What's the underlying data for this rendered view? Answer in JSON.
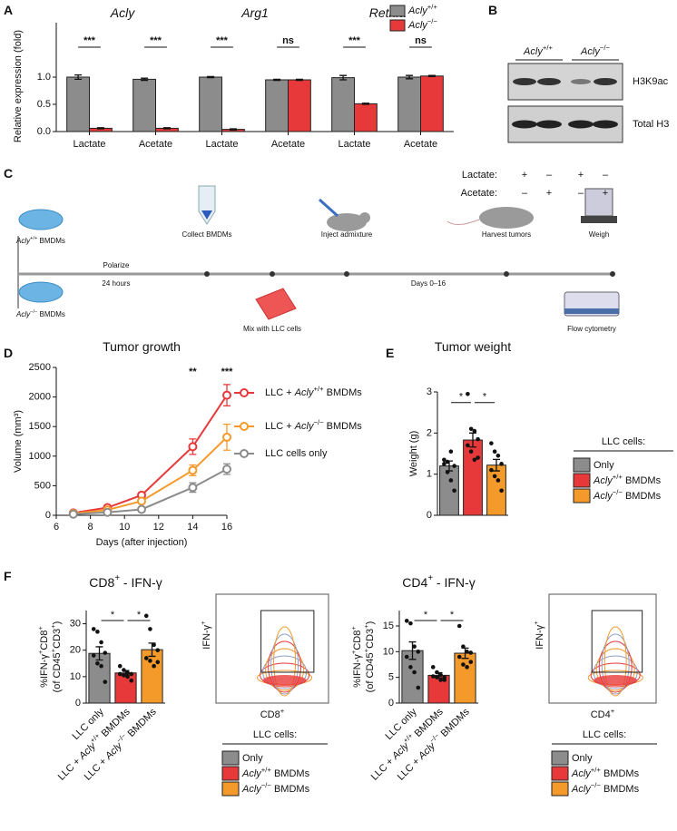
{
  "panel_labels": [
    "A",
    "B",
    "C",
    "D",
    "E",
    "F"
  ],
  "chart_data": [
    {
      "type": "bar",
      "groups": [
        "Acly",
        "Arg1",
        "Retnla"
      ],
      "categories": [
        "Lactate",
        "Acetate",
        "Lactate",
        "Acetate",
        "Lactate",
        "Acetate"
      ],
      "ylabel": "Relative expression (fold)",
      "series": [
        {
          "name": "Acly+/+",
          "color": "#8c8c8c",
          "values": [
            1.0,
            0.96,
            1.0,
            0.95,
            0.99,
            1.0
          ],
          "errors": [
            0.04,
            0.02,
            0.01,
            0.01,
            0.04,
            0.03
          ]
        },
        {
          "name": "Acly−/−",
          "color": "#e8393a",
          "values": [
            0.06,
            0.06,
            0.04,
            0.95,
            0.51,
            1.02
          ],
          "errors": [
            0.01,
            0.01,
            0.01,
            0.01,
            0.01,
            0.01
          ]
        }
      ],
      "significance": [
        "***",
        "***",
        "***",
        "ns",
        "***",
        "ns"
      ],
      "ylim": [
        0,
        2.0
      ],
      "yticks": [
        {
          "value": 0,
          "label": "0.0"
        },
        0.5,
        {
          "value": 1,
          "label": "1.0"
        }
      ]
    },
    {
      "type": "line",
      "title": "Tumor growth",
      "xlabel": "Days (after injection)",
      "ylabel": "Volume (mm³)",
      "x": [
        7,
        9,
        11,
        14,
        16
      ],
      "series": [
        {
          "name": "LLC + Acly+/+ BMDMs",
          "color": "#e8393a",
          "values": [
            40,
            130,
            340,
            1160,
            2030
          ],
          "errors": [
            10,
            20,
            30,
            130,
            180
          ]
        },
        {
          "name": "LLC + Acly−/− BMDMs",
          "color": "#f39a2b",
          "values": [
            30,
            90,
            240,
            760,
            1320
          ],
          "errors": [
            10,
            15,
            30,
            90,
            220
          ]
        },
        {
          "name": "LLC cells only",
          "color": "#8c8c8c",
          "values": [
            20,
            50,
            100,
            470,
            780
          ],
          "errors": [
            5,
            10,
            20,
            80,
            90
          ]
        }
      ],
      "significance": [
        "**",
        "***"
      ],
      "xlim": [
        6,
        16
      ],
      "xticks": [
        6,
        8,
        10,
        12,
        14,
        16
      ],
      "ylim": [
        0,
        2500
      ],
      "yticks": [
        0,
        500,
        1000,
        1500,
        2000,
        2500
      ]
    },
    {
      "type": "bar",
      "title": "Tumor weight",
      "ylabel": "Weight (g)",
      "categories": [
        null,
        null,
        null
      ],
      "legend_title": "LLC cells:",
      "legend": [
        "Only",
        "Acly+/+ BMDMs",
        "Acly−/− BMDMs"
      ],
      "colors": [
        "#8c8c8c",
        "#e8393a",
        "#f39a2b"
      ],
      "values": [
        1.2,
        1.83,
        1.22
      ],
      "errors": [
        0.12,
        0.17,
        0.14
      ],
      "points": [
        [
          1.25,
          1.3,
          0.85,
          1.2,
          1.35,
          1.05,
          1.55,
          0.6
        ],
        [
          2.95,
          2.1,
          2.05,
          1.85,
          1.7,
          1.55,
          1.35,
          1.4
        ],
        [
          1.75,
          1.55,
          1.45,
          1.25,
          1.1,
          0.95,
          0.85,
          0.6
        ]
      ],
      "significance": [
        "*",
        "*"
      ],
      "ylim": [
        0,
        3
      ],
      "yticks": [
        0,
        1,
        2,
        3
      ]
    },
    {
      "type": "bar",
      "title": "CD8+ - IFN-γ",
      "ylabel": [
        "%IFN-γ+CD8+",
        "(of CD45+CD3+)"
      ],
      "categories": [
        "LLC only",
        "LLC + Acly+/+ BMDMs",
        "LLC + Acly−/− BMDMs"
      ],
      "colors": [
        "#8c8c8c",
        "#e8393a",
        "#f39a2b"
      ],
      "values": [
        18.8,
        11.4,
        20.2
      ],
      "errors": [
        2.5,
        0.9,
        2.5
      ],
      "points": [
        [
          28,
          27,
          23,
          19,
          18,
          15,
          14,
          8
        ],
        [
          14,
          12.5,
          11.5,
          11,
          11,
          10.5,
          10,
          8.5
        ],
        [
          33,
          28,
          22,
          20,
          17,
          16,
          14,
          15.5
        ]
      ],
      "significance": [
        "*",
        "*"
      ],
      "ylim": [
        0,
        35
      ],
      "yticks": [
        0,
        10,
        20,
        30
      ]
    },
    {
      "type": "bar",
      "title": "CD4+ - IFN-γ",
      "ylabel": [
        "%IFN-γ+CD8+",
        "(of CD45+CD3+)"
      ],
      "categories": [
        "LLC only",
        "LLC + Acly+/+ BMDMs",
        "LLC + Acly−/− BMDMs"
      ],
      "colors": [
        "#8c8c8c",
        "#e8393a",
        "#f39a2b"
      ],
      "values": [
        10.2,
        5.4,
        9.7
      ],
      "errors": [
        1.7,
        0.5,
        1.0
      ],
      "points": [
        [
          16,
          15.5,
          11,
          10,
          9,
          7,
          6,
          3
        ],
        [
          7,
          6,
          5.5,
          5,
          5.2,
          5,
          4.5,
          4.5
        ],
        [
          15,
          11,
          10,
          9.8,
          9,
          7.5,
          7,
          8
        ]
      ],
      "significance": [
        "*",
        "*"
      ],
      "ylim": [
        0,
        18
      ],
      "yticks": [
        0,
        5,
        10,
        15
      ]
    }
  ],
  "blot": {
    "genotypes": [
      "Acly+/+",
      "Acly−/−"
    ],
    "bands": [
      "H3K9ac",
      "Total H3"
    ],
    "rows": [
      {
        "label": "Lactate:",
        "signs": [
          "+",
          "–",
          "+",
          "–"
        ]
      },
      {
        "label": "Acetate:",
        "signs": [
          "–",
          "+",
          "–",
          "+"
        ]
      }
    ]
  },
  "timeline": {
    "wt": "Acly+/+ BMDMs",
    "ko": "Acly−/− BMDMs",
    "polarize": "Polarize",
    "hours": "24 hours",
    "collect": "Collect BMDMs",
    "mix": "Mix with LLC cells",
    "inject": "Inject admixture",
    "days": "Days 0–16",
    "harvest": "Harvest tumors",
    "weigh": "Weigh",
    "flow": "Flow cytometry"
  },
  "flow": [
    {
      "y_label": "IFN-γ+",
      "x_label": "CD8+"
    },
    {
      "y_label": "IFN-γ+",
      "x_label": "CD4+"
    }
  ]
}
